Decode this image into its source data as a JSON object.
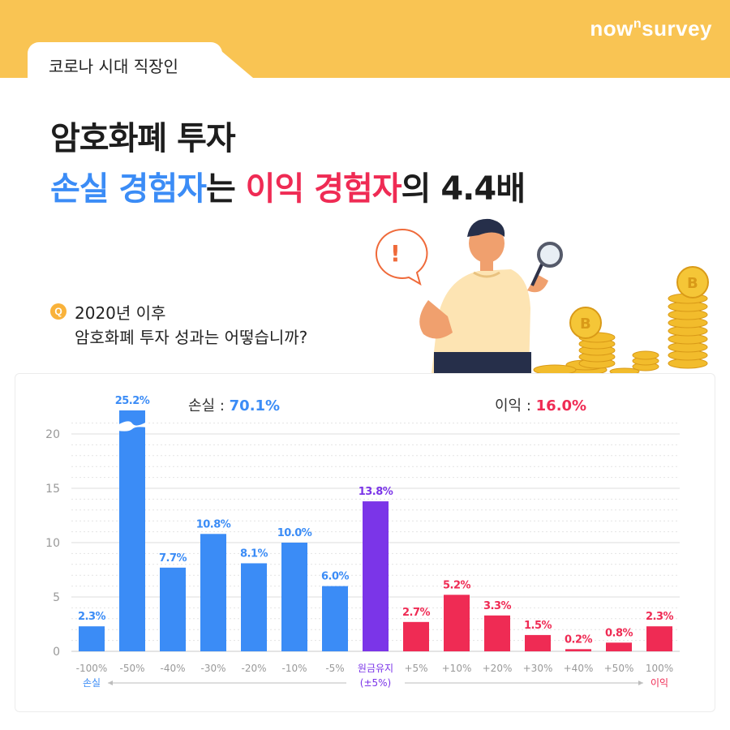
{
  "brand": {
    "prefix": "now",
    "sup": "n",
    "suffix": "survey"
  },
  "tab_label": "코로나 시대 직장인",
  "headline": {
    "line1": "암호화폐 투자",
    "line2_blue": "손실 경험자",
    "line2_mid": "는 ",
    "line2_red": "이익 경험자",
    "line2_end": "의 4.4배"
  },
  "question": {
    "badge": "Q",
    "line1": "2020년 이후",
    "line2": "암호화폐 투자 성과는 어떻습니까?"
  },
  "illustration": {
    "speech_mark": "!",
    "coin_symbol": "B"
  },
  "summary": {
    "loss_label": "손실 : ",
    "loss_value": "70.1%",
    "gain_label": "이익 : ",
    "gain_value": "16.0%"
  },
  "colors": {
    "loss": "#3b8cf6",
    "neutral": "#7b35e8",
    "gain": "#ef2b54",
    "bg": "#f9c453"
  },
  "chart_data": {
    "type": "bar",
    "categories": [
      "-100%",
      "-50%",
      "-40%",
      "-30%",
      "-20%",
      "-10%",
      "-5%",
      "원금유지",
      "+5%",
      "+10%",
      "+20%",
      "+30%",
      "+40%",
      "+50%",
      "100%"
    ],
    "category_sublabels": [
      "손실",
      "",
      "",
      "",
      "",
      "",
      "",
      "(±5%)",
      "",
      "",
      "",
      "",
      "",
      "",
      "이익"
    ],
    "values": [
      2.3,
      25.2,
      7.7,
      10.8,
      8.1,
      10.0,
      6.0,
      13.8,
      2.7,
      5.2,
      3.3,
      1.5,
      0.2,
      0.8,
      2.3
    ],
    "data_labels": [
      "2.3%",
      "25.2%",
      "7.7%",
      "10.8%",
      "8.1%",
      "10.0%",
      "6.0%",
      "13.8%",
      "2.7%",
      "5.2%",
      "3.3%",
      "1.5%",
      "0.2%",
      "0.8%",
      "2.3%"
    ],
    "groups": [
      "loss",
      "loss",
      "loss",
      "loss",
      "loss",
      "loss",
      "loss",
      "neutral",
      "gain",
      "gain",
      "gain",
      "gain",
      "gain",
      "gain",
      "gain"
    ],
    "yticks": [
      "0",
      "5",
      "10",
      "15",
      "20"
    ],
    "ylim": [
      0,
      22
    ],
    "broken_axis_bar": "-50%",
    "grid": true
  }
}
